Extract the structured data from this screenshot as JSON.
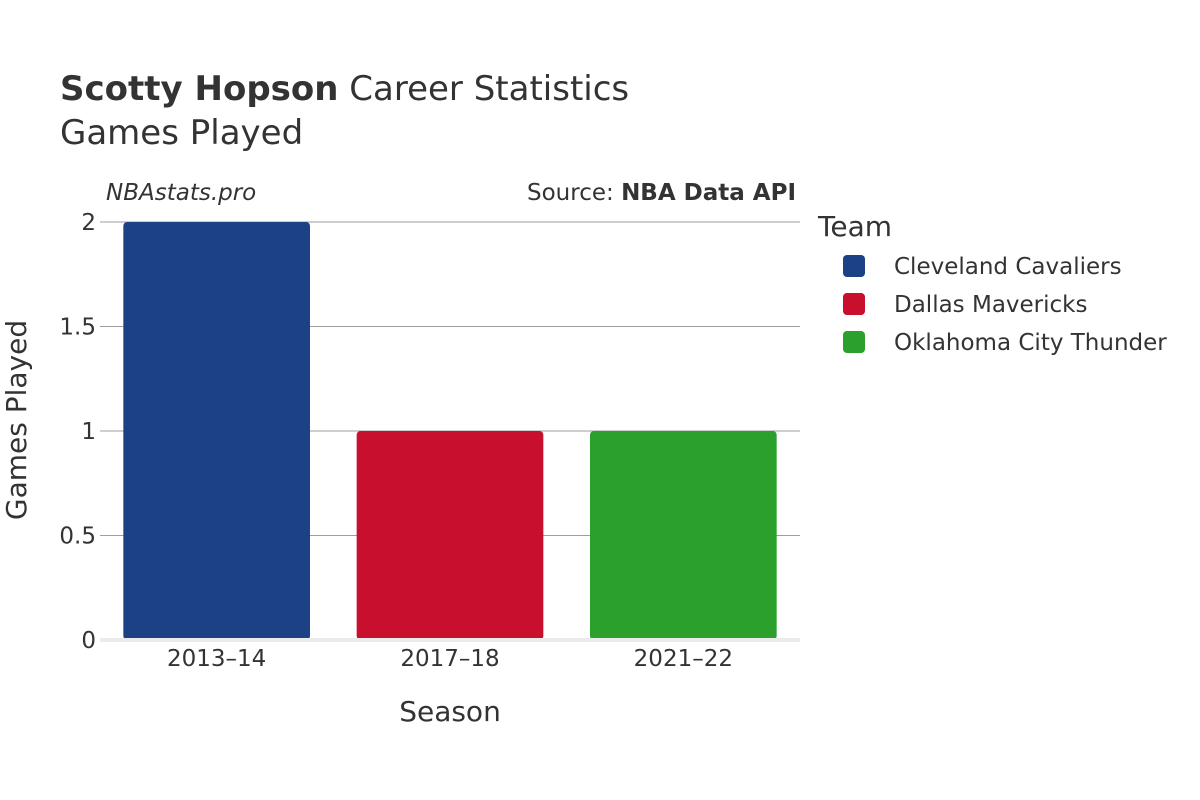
{
  "chart_data": {
    "type": "bar",
    "title_bold": "Scotty Hopson",
    "title_rest": " Career Statistics",
    "subtitle": "Games Played",
    "credit": "NBAstats.pro",
    "source_label": "Source: ",
    "source_name": "NBA Data API",
    "xlabel": "Season",
    "ylabel": "Games Played",
    "categories": [
      "2013–14",
      "2017–18",
      "2021–22"
    ],
    "series": [
      {
        "name": "Cleveland Cavaliers",
        "color": "#1d4185",
        "values": [
          2,
          null,
          null
        ]
      },
      {
        "name": "Dallas Mavericks",
        "color": "#c8102e",
        "values": [
          null,
          1,
          null
        ]
      },
      {
        "name": "Oklahoma City Thunder",
        "color": "#2ca02c",
        "values": [
          null,
          null,
          1
        ]
      }
    ],
    "ylim": [
      0,
      2
    ],
    "yticks": [
      0,
      0.5,
      1,
      1.5,
      2
    ],
    "ytick_labels": [
      "0",
      "0.5",
      "1",
      "1.5",
      "2"
    ],
    "grid": true,
    "legend_title": "Team",
    "legend_position": "right"
  }
}
